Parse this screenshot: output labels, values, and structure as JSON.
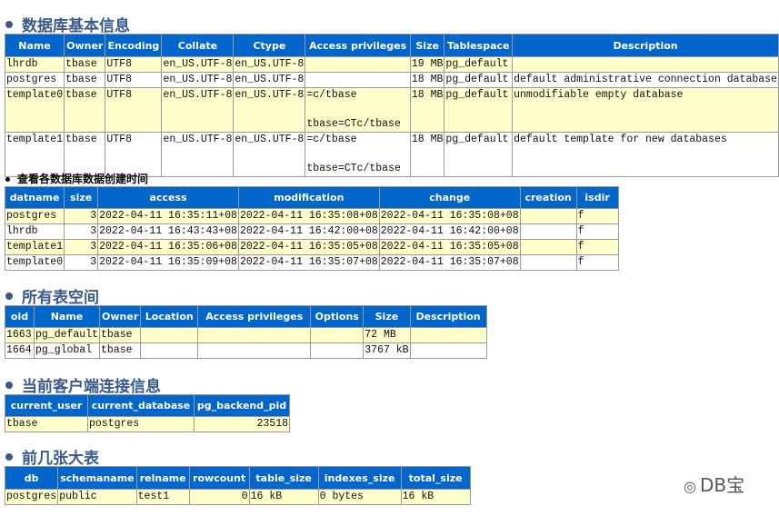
{
  "sections": [
    {
      "title": "数据库基本信息",
      "style": "h2",
      "headers": [
        "Name",
        "Owner",
        "Encoding",
        "Collate",
        "Ctype",
        "Access privileges",
        "Size",
        "Tablespace",
        "Description"
      ],
      "rows": [
        [
          "lhrdb",
          "tbase",
          "UTF8",
          "en_US.UTF-8",
          "en_US.UTF-8",
          "",
          "19 MB",
          "pg_default",
          ""
        ],
        [
          "postgres",
          "tbase",
          "UTF8",
          "en_US.UTF-8",
          "en_US.UTF-8",
          "",
          "18 MB",
          "pg_default",
          "default administrative connection database"
        ],
        [
          "template0",
          "tbase",
          "UTF8",
          "en_US.UTF-8",
          "en_US.UTF-8",
          "=c/tbase\n\ntbase=CTc/tbase",
          "18 MB",
          "pg_default",
          "unmodifiable empty database"
        ],
        [
          "template1",
          "tbase",
          "UTF8",
          "en_US.UTF-8",
          "en_US.UTF-8",
          "=c/tbase\n\ntbase=CTc/tbase",
          "18 MB",
          "pg_default",
          "default template for new databases"
        ]
      ]
    },
    {
      "title": "查看各数据库数据创建时间",
      "style": "h3",
      "headers": [
        "datname",
        "size",
        "access",
        "modification",
        "change",
        "creation",
        "isdir"
      ],
      "rows": [
        [
          "postgres",
          "3",
          "2022-04-11 16:35:11+08",
          "2022-04-11 16:35:08+08",
          "2022-04-11 16:35:08+08",
          "",
          "f"
        ],
        [
          "lhrdb",
          "3",
          "2022-04-11 16:43:43+08",
          "2022-04-11 16:42:00+08",
          "2022-04-11 16:42:00+08",
          "",
          "f"
        ],
        [
          "template1",
          "3",
          "2022-04-11 16:35:06+08",
          "2022-04-11 16:35:05+08",
          "2022-04-11 16:35:05+08",
          "",
          "f"
        ],
        [
          "template0",
          "3",
          "2022-04-11 16:35:09+08",
          "2022-04-11 16:35:07+08",
          "2022-04-11 16:35:07+08",
          "",
          "f"
        ]
      ]
    },
    {
      "title": "所有表空间",
      "style": "h2",
      "headers": [
        "oid",
        "Name",
        "Owner",
        "Location",
        "Access privileges",
        "Options",
        "Size",
        "Description"
      ],
      "rows": [
        [
          "1663",
          "pg_default",
          "tbase",
          "",
          "",
          "",
          "72 MB",
          ""
        ],
        [
          "1664",
          "pg_global",
          "tbase",
          "",
          "",
          "",
          "3767 kB",
          ""
        ]
      ]
    },
    {
      "title": "当前客户端连接信息",
      "style": "h2",
      "headers": [
        "current_user",
        "current_database",
        "pg_backend_pid"
      ],
      "rows": [
        [
          "tbase",
          "postgres",
          "23518"
        ]
      ]
    },
    {
      "title": "前几张大表",
      "style": "h2",
      "headers": [
        "db",
        "schemaname",
        "relname",
        "rowcount",
        "table_size",
        "indexes_size",
        "total_size"
      ],
      "rows": [
        [
          "postgres",
          "public",
          "test1",
          "0",
          "16 kB",
          "0 bytes",
          "16 kB"
        ]
      ]
    }
  ],
  "watermark": "DB宝",
  "colors": {
    "header_bg": "#0066cc",
    "odd_row_bg": "#ffffcc",
    "title": "#3a5a8c"
  }
}
